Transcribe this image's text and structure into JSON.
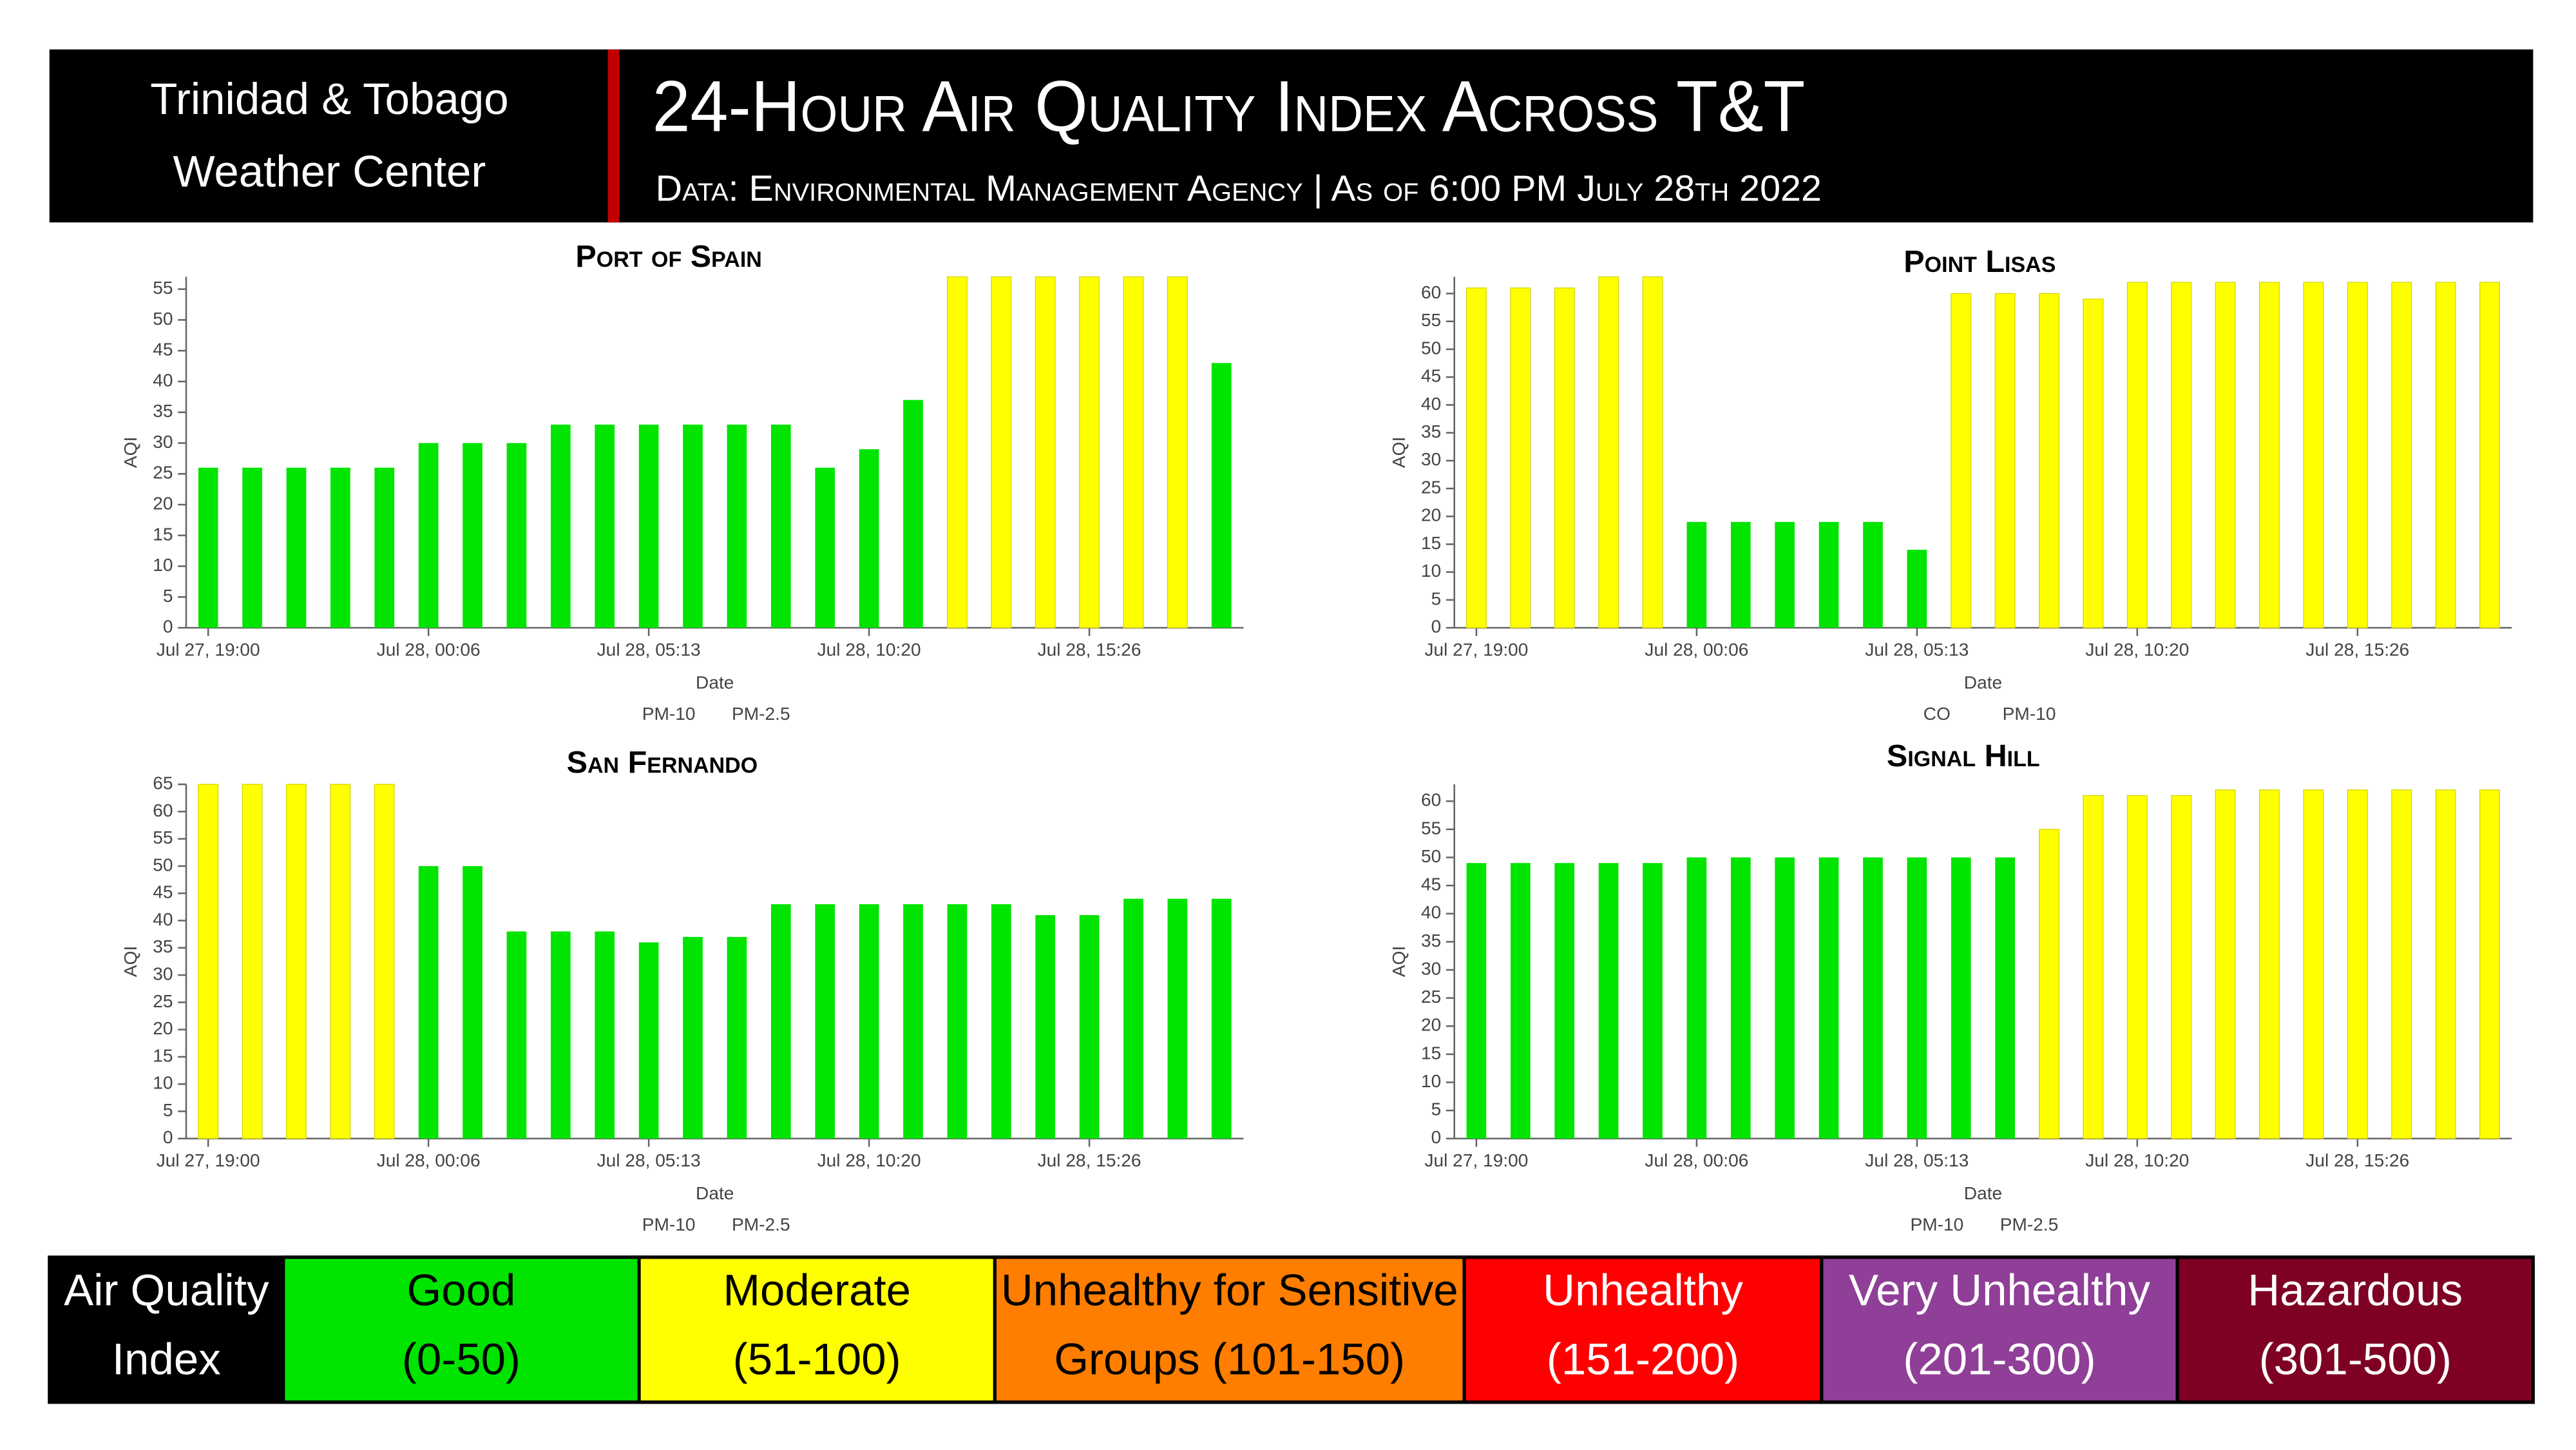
{
  "header": {
    "left_lines": [
      "Trinidad & Tobago",
      "Weather Center"
    ],
    "title": "24-Hour Air Quality Index Across T&T",
    "subtitle": "Data: Environmental Management Agency | As of 6:00 PM July 28th 2022"
  },
  "chart_data": [
    {
      "type": "bar",
      "title": "Port of Spain",
      "x_label": "Date",
      "y_label": "AQI",
      "legend_items": [
        "PM-10",
        "PM-2.5"
      ],
      "categories": [
        "Jul 27, 19:00",
        null,
        null,
        null,
        null,
        "Jul 28, 00:06",
        null,
        null,
        null,
        null,
        "Jul 28, 05:13",
        null,
        null,
        null,
        null,
        "Jul 28, 10:20",
        null,
        null,
        null,
        null,
        "Jul 28, 15:26",
        null,
        null,
        null
      ],
      "values": [
        26,
        26,
        26,
        26,
        26,
        30,
        30,
        30,
        33,
        33,
        33,
        33,
        33,
        33,
        26,
        29,
        37,
        57,
        57,
        57,
        57,
        57,
        57,
        43
      ],
      "colors": [
        "#00e400",
        "#00e400",
        "#00e400",
        "#00e400",
        "#00e400",
        "#00e400",
        "#00e400",
        "#00e400",
        "#00e400",
        "#00e400",
        "#00e400",
        "#00e400",
        "#00e400",
        "#00e400",
        "#00e400",
        "#00e400",
        "#00e400",
        "#ffff00",
        "#ffff00",
        "#ffff00",
        "#ffff00",
        "#ffff00",
        "#ffff00",
        "#00e400"
      ],
      "ylim": [
        0,
        57
      ],
      "yticks": [
        0,
        5,
        10,
        15,
        20,
        25,
        30,
        35,
        40,
        45,
        50,
        55
      ]
    },
    {
      "type": "bar",
      "title": "Point Lisas",
      "x_label": "Date",
      "y_label": "AQI",
      "legend_items": [
        "CO",
        "PM-10"
      ],
      "categories": [
        "Jul 27, 19:00",
        null,
        null,
        null,
        null,
        "Jul 28, 00:06",
        null,
        null,
        null,
        null,
        "Jul 28, 05:13",
        null,
        null,
        null,
        null,
        "Jul 28, 10:20",
        null,
        null,
        null,
        null,
        "Jul 28, 15:26",
        null,
        null,
        null
      ],
      "values": [
        61,
        61,
        61,
        63,
        63,
        19,
        19,
        19,
        19,
        19,
        14,
        60,
        60,
        60,
        59,
        62,
        62,
        62,
        62,
        62,
        62,
        62,
        62,
        62
      ],
      "colors": [
        "#ffff00",
        "#ffff00",
        "#ffff00",
        "#ffff00",
        "#ffff00",
        "#00e400",
        "#00e400",
        "#00e400",
        "#00e400",
        "#00e400",
        "#00e400",
        "#ffff00",
        "#ffff00",
        "#ffff00",
        "#ffff00",
        "#ffff00",
        "#ffff00",
        "#ffff00",
        "#ffff00",
        "#ffff00",
        "#ffff00",
        "#ffff00",
        "#ffff00",
        "#ffff00"
      ],
      "ylim": [
        0,
        63
      ],
      "yticks": [
        0,
        5,
        10,
        15,
        20,
        25,
        30,
        35,
        40,
        45,
        50,
        55,
        60
      ]
    },
    {
      "type": "bar",
      "title": "San Fernando",
      "x_label": "Date",
      "y_label": "AQI",
      "legend_items": [
        "PM-10",
        "PM-2.5"
      ],
      "categories": [
        "Jul 27, 19:00",
        null,
        null,
        null,
        null,
        "Jul 28, 00:06",
        null,
        null,
        null,
        null,
        "Jul 28, 05:13",
        null,
        null,
        null,
        null,
        "Jul 28, 10:20",
        null,
        null,
        null,
        null,
        "Jul 28, 15:26",
        null,
        null,
        null
      ],
      "values": [
        65,
        65,
        65,
        65,
        65,
        50,
        50,
        38,
        38,
        38,
        36,
        37,
        37,
        43,
        43,
        43,
        43,
        43,
        43,
        41,
        41,
        44,
        44,
        44
      ],
      "colors": [
        "#ffff00",
        "#ffff00",
        "#ffff00",
        "#ffff00",
        "#ffff00",
        "#00e400",
        "#00e400",
        "#00e400",
        "#00e400",
        "#00e400",
        "#00e400",
        "#00e400",
        "#00e400",
        "#00e400",
        "#00e400",
        "#00e400",
        "#00e400",
        "#00e400",
        "#00e400",
        "#00e400",
        "#00e400",
        "#00e400",
        "#00e400",
        "#00e400"
      ],
      "ylim": [
        0,
        65
      ],
      "yticks": [
        0,
        5,
        10,
        15,
        20,
        25,
        30,
        35,
        40,
        45,
        50,
        55,
        60,
        65
      ]
    },
    {
      "type": "bar",
      "title": "Signal Hill",
      "x_label": "Date",
      "y_label": "AQI",
      "legend_items": [
        "PM-10",
        "PM-2.5"
      ],
      "categories": [
        "Jul 27, 19:00",
        null,
        null,
        null,
        null,
        "Jul 28, 00:06",
        null,
        null,
        null,
        null,
        "Jul 28, 05:13",
        null,
        null,
        null,
        null,
        "Jul 28, 10:20",
        null,
        null,
        null,
        null,
        "Jul 28, 15:26",
        null,
        null,
        null
      ],
      "values": [
        49,
        49,
        49,
        49,
        49,
        50,
        50,
        50,
        50,
        50,
        50,
        50,
        50,
        55,
        61,
        61,
        61,
        62,
        62,
        62,
        62,
        62,
        62,
        62
      ],
      "colors": [
        "#00e400",
        "#00e400",
        "#00e400",
        "#00e400",
        "#00e400",
        "#00e400",
        "#00e400",
        "#00e400",
        "#00e400",
        "#00e400",
        "#00e400",
        "#00e400",
        "#00e400",
        "#ffff00",
        "#ffff00",
        "#ffff00",
        "#ffff00",
        "#ffff00",
        "#ffff00",
        "#ffff00",
        "#ffff00",
        "#ffff00",
        "#ffff00",
        "#ffff00"
      ],
      "ylim": [
        0,
        63
      ],
      "yticks": [
        0,
        5,
        10,
        15,
        20,
        25,
        30,
        35,
        40,
        45,
        50,
        55,
        60
      ]
    }
  ],
  "aqi_legend": {
    "label_lines": [
      "Air Quality",
      "Index"
    ],
    "levels": [
      {
        "name": "Good",
        "range": "(0-50)",
        "color": "#00e400"
      },
      {
        "name": "Moderate",
        "range": "(51-100)",
        "color": "#ffff00"
      },
      {
        "name": "Unhealthy for Sensitive",
        "range": "Groups (101-150)",
        "color": "#ff7e00"
      },
      {
        "name": "Unhealthy",
        "range": "(151-200)",
        "color": "#ff0000"
      },
      {
        "name": "Very Unhealthy",
        "range": "(201-300)",
        "color": "#8f3f97"
      },
      {
        "name": "Hazardous",
        "range": "(301-500)",
        "color": "#7e0023"
      }
    ]
  }
}
